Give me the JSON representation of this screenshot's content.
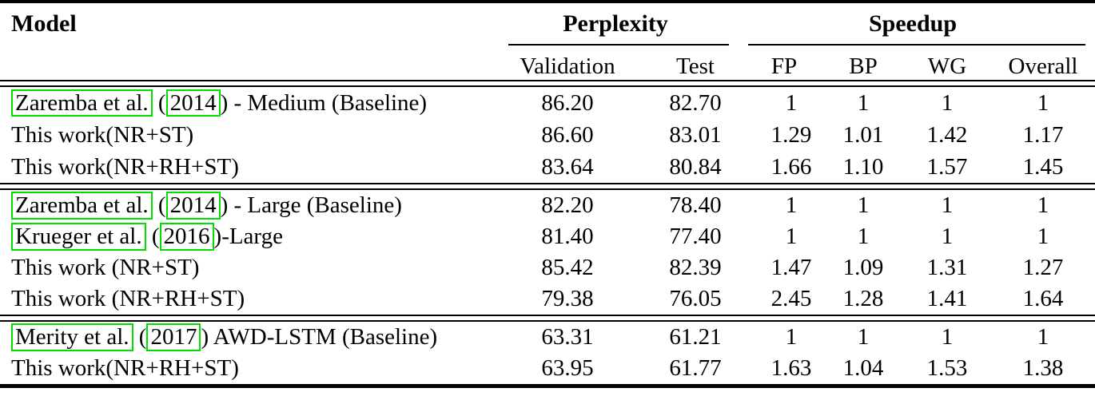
{
  "colors": {
    "citation_box": "#00dd00",
    "text": "#000000",
    "background": "#ffffff"
  },
  "table": {
    "header": {
      "model": "Model",
      "perplexity": "Perplexity",
      "speedup": "Speedup",
      "subheaders": [
        "Validation",
        "Test",
        "FP",
        "BP",
        "WG",
        "Overall"
      ]
    },
    "groups": [
      {
        "rows": [
          {
            "model_parts": [
              {
                "t": "Zaremba et al.",
                "box": true,
                "kind": "citation-link"
              },
              {
                "t": " (",
                "box": false
              },
              {
                "t": "2014",
                "box": true,
                "kind": "year-link"
              },
              {
                "t": ") - Medium (Baseline)",
                "box": false
              }
            ],
            "values": [
              "86.20",
              "82.70",
              "1",
              "1",
              "1",
              "1"
            ]
          },
          {
            "model_parts": [
              {
                "t": "This work(NR+ST)",
                "box": false
              }
            ],
            "values": [
              "86.60",
              "83.01",
              "1.29",
              "1.01",
              "1.42",
              "1.17"
            ]
          },
          {
            "model_parts": [
              {
                "t": "This work(NR+RH+ST)",
                "box": false
              }
            ],
            "values": [
              "83.64",
              "80.84",
              "1.66",
              "1.10",
              "1.57",
              "1.45"
            ]
          }
        ]
      },
      {
        "rows": [
          {
            "model_parts": [
              {
                "t": "Zaremba et al.",
                "box": true,
                "kind": "citation-link"
              },
              {
                "t": " (",
                "box": false
              },
              {
                "t": "2014",
                "box": true,
                "kind": "year-link"
              },
              {
                "t": ") - Large (Baseline)",
                "box": false
              }
            ],
            "values": [
              "82.20",
              "78.40",
              "1",
              "1",
              "1",
              "1"
            ]
          },
          {
            "model_parts": [
              {
                "t": "Krueger et al.",
                "box": true,
                "kind": "citation-link"
              },
              {
                "t": " (",
                "box": false
              },
              {
                "t": "2016",
                "box": true,
                "kind": "year-link"
              },
              {
                "t": ")-Large",
                "box": false
              }
            ],
            "values": [
              "81.40",
              "77.40",
              "1",
              "1",
              "1",
              "1"
            ]
          },
          {
            "model_parts": [
              {
                "t": "This work (NR+ST)",
                "box": false
              }
            ],
            "values": [
              "85.42",
              "82.39",
              "1.47",
              "1.09",
              "1.31",
              "1.27"
            ]
          },
          {
            "model_parts": [
              {
                "t": "This work (NR+RH+ST)",
                "box": false
              }
            ],
            "values": [
              "79.38",
              "76.05",
              "2.45",
              "1.28",
              "1.41",
              "1.64"
            ]
          }
        ]
      },
      {
        "rows": [
          {
            "model_parts": [
              {
                "t": "Merity et al.",
                "box": true,
                "kind": "citation-link"
              },
              {
                "t": " (",
                "box": false
              },
              {
                "t": "2017",
                "box": true,
                "kind": "year-link"
              },
              {
                "t": ") AWD-LSTM (Baseline)",
                "box": false
              }
            ],
            "values": [
              "63.31",
              "61.21",
              "1",
              "1",
              "1",
              "1"
            ]
          },
          {
            "model_parts": [
              {
                "t": "This work(NR+RH+ST)",
                "box": false
              }
            ],
            "values": [
              "63.95",
              "61.77",
              "1.63",
              "1.04",
              "1.53",
              "1.38"
            ]
          }
        ]
      }
    ]
  }
}
